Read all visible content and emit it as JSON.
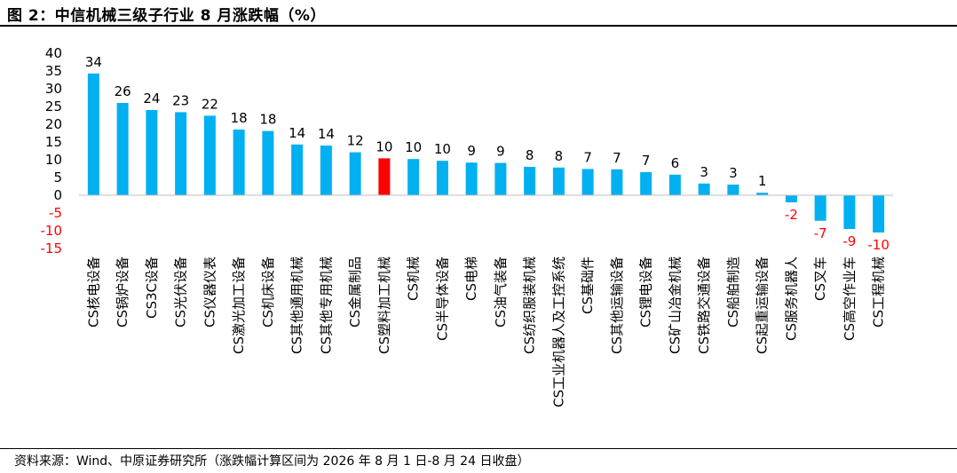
{
  "figure_title": "图 2：中信机械三级子行业 8 月涨跌幅（%）",
  "source_note": "资料来源：Wind、中原证券研究所（涨跌幅计算区间为 2026 年 8 月 1 日-8 月 24 日收盘）",
  "colors": {
    "bar": "#00b0f0",
    "highlight_bar": "#ff0000",
    "positive_label": "#000000",
    "negative_label": "#ff0000",
    "negative_tick": "#ff0000"
  },
  "chart_data": {
    "type": "bar",
    "title": "",
    "xlabel": "",
    "ylabel": "",
    "ylim": [
      -15,
      40
    ],
    "yticks": [
      40,
      35,
      30,
      25,
      20,
      15,
      10,
      5,
      0,
      -5,
      -10,
      -15
    ],
    "grid": false,
    "highlight_index": 10,
    "categories": [
      "CS核电设备",
      "CS锅炉设备",
      "CS3C设备",
      "CS光伏设备",
      "CS仪器仪表",
      "CS激光加工设备",
      "CS机床设备",
      "CS其他通用机械",
      "CS其他专用机械",
      "CS金属制品",
      "CS塑料加工机械",
      "CS机械",
      "CS半导体设备",
      "CS电梯",
      "CS油气装备",
      "CS纺织服装机械",
      "CS工业机器人及工控系统",
      "CS基础件",
      "CS其他运输设备",
      "CS锂电设备",
      "CS矿山冶金机械",
      "CS铁路交通设备",
      "CS船舶制造",
      "CS起重运输设备",
      "CS服务机器人",
      "CS叉车",
      "CS高空作业车",
      "CS工程机械"
    ],
    "values": [
      34.3,
      26,
      24,
      23.4,
      22.4,
      18.5,
      18.1,
      14.3,
      14,
      12.1,
      10.4,
      10.2,
      9.7,
      9.2,
      9.1,
      8,
      7.8,
      7.4,
      7.3,
      6.5,
      5.8,
      3.3,
      3,
      0.7,
      -2,
      -7.2,
      -9.5,
      -10.5
    ],
    "labels": [
      "34",
      "26",
      "24",
      "23",
      "22",
      "18",
      "18",
      "14",
      "14",
      "12",
      "10",
      "10",
      "10",
      "9",
      "9",
      "8",
      "8",
      "7",
      "7",
      "7",
      "6",
      "3",
      "3",
      "1",
      "-2",
      "-7",
      "-9",
      "-10"
    ]
  }
}
